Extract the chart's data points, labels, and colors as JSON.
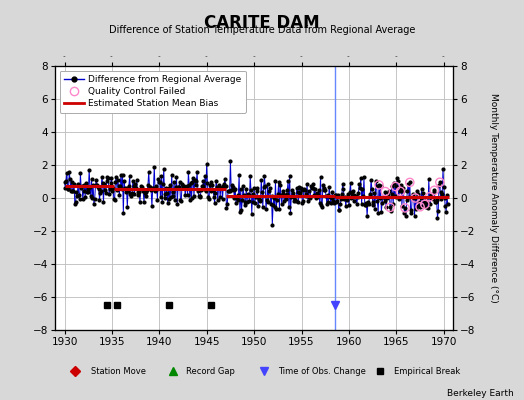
{
  "title": "CARITE DAM",
  "subtitle": "Difference of Station Temperature Data from Regional Average",
  "ylabel": "Monthly Temperature Anomaly Difference (°C)",
  "xlabel_credit": "Berkeley Earth",
  "xlim": [
    1929,
    1971
  ],
  "ylim": [
    -8,
    8
  ],
  "yticks": [
    -8,
    -6,
    -4,
    -2,
    0,
    2,
    4,
    6,
    8
  ],
  "xticks": [
    1930,
    1935,
    1940,
    1945,
    1950,
    1955,
    1960,
    1965,
    1970
  ],
  "bg_color": "#d8d8d8",
  "plot_bg_color": "#ffffff",
  "grid_color": "#bbbbbb",
  "seed": 42,
  "empirical_breaks": [
    1934.5,
    1935.5,
    1941.0,
    1945.5
  ],
  "time_obs_change": 1958.5,
  "segments": [
    {
      "start": 1930.0,
      "end": 1935.2,
      "bias": 0.7
    },
    {
      "start": 1935.2,
      "end": 1947.0,
      "bias": 0.55
    },
    {
      "start": 1947.0,
      "end": 1958.5,
      "bias": 0.15
    },
    {
      "start": 1958.5,
      "end": 1970.5,
      "bias": 0.05
    }
  ],
  "data_line_color": "#0000cc",
  "data_marker_color": "#000000",
  "bias_line_color": "#cc0000",
  "qc_color": "#ff88cc"
}
